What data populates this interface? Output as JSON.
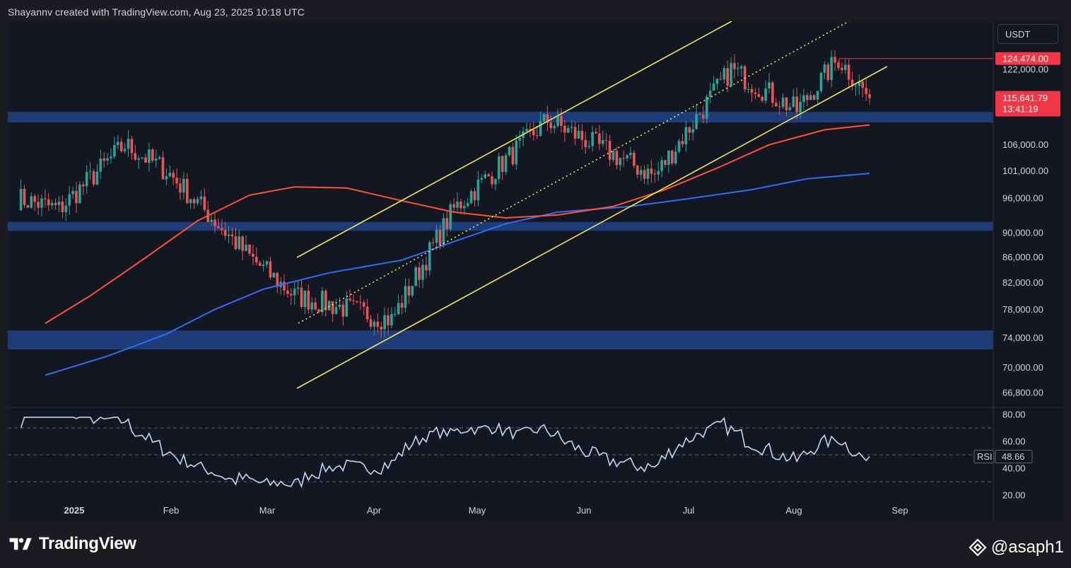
{
  "attribution": "Shayannv created with TradingView.com, Aug 23, 2025 10:18 UTC",
  "currency": "USDT",
  "brand": "TradingView",
  "watermark": "@asaph1",
  "colors": {
    "background": "#131722",
    "zone": "#1e3c78",
    "channel": "#f2e558",
    "ma_200": "#ff5230",
    "ma_365": "#2f6ef0",
    "rsi": "#c7d3f5",
    "bull": "#26a69a",
    "bear": "#ef5350",
    "price_tag": "#f23645"
  },
  "chart_data": [
    {
      "type": "candlestick",
      "pair_quote": "USDT",
      "x_ticks": [
        "2025",
        "Feb",
        "Mar",
        "Apr",
        "May",
        "Jun",
        "Jul",
        "Aug",
        "Sep"
      ],
      "y_ticks": [
        "122,000.00",
        "106,000.00",
        "101,000.00",
        "96,000.00",
        "90,000.00",
        "86,000.00",
        "82,000.00",
        "78,000.00",
        "74,000.00",
        "70,000.00",
        "66,800.00"
      ],
      "y_scale": "log",
      "price_tags": {
        "high": "124,474.00",
        "last": "115,641.79",
        "countdown": "13:41:19"
      },
      "support_zones": [
        {
          "from": 110500,
          "to": 112700
        },
        {
          "from": 90300,
          "to": 91800
        },
        {
          "from": 72400,
          "to": 75000
        }
      ],
      "channel_lines": [
        "ascending-channel-upper",
        "ascending-channel-mid-dotted",
        "ascending-channel-lower"
      ],
      "moving_averages": [
        "200-day",
        "365-day"
      ],
      "close_path_monthly": [
        {
          "date": "2025-01-01",
          "close": 94000
        },
        {
          "date": "2025-01-20",
          "close": 106000
        },
        {
          "date": "2025-02-01",
          "close": 101000
        },
        {
          "date": "2025-02-25",
          "close": 86000
        },
        {
          "date": "2025-03-10",
          "close": 80000
        },
        {
          "date": "2025-04-07",
          "close": 76500
        },
        {
          "date": "2025-04-25",
          "close": 94000
        },
        {
          "date": "2025-05-22",
          "close": 111000
        },
        {
          "date": "2025-06-22",
          "close": 100000
        },
        {
          "date": "2025-07-14",
          "close": 122000
        },
        {
          "date": "2025-08-02",
          "close": 113000
        },
        {
          "date": "2025-08-14",
          "close": 124474
        },
        {
          "date": "2025-08-23",
          "close": 115641.79
        }
      ]
    },
    {
      "type": "line",
      "series": [
        {
          "name": "RSI",
          "last": "48.66"
        }
      ],
      "y_ticks": [
        "80.00",
        "60.00",
        "40.00",
        "20.00"
      ],
      "levels": [
        70,
        50,
        30
      ]
    }
  ]
}
